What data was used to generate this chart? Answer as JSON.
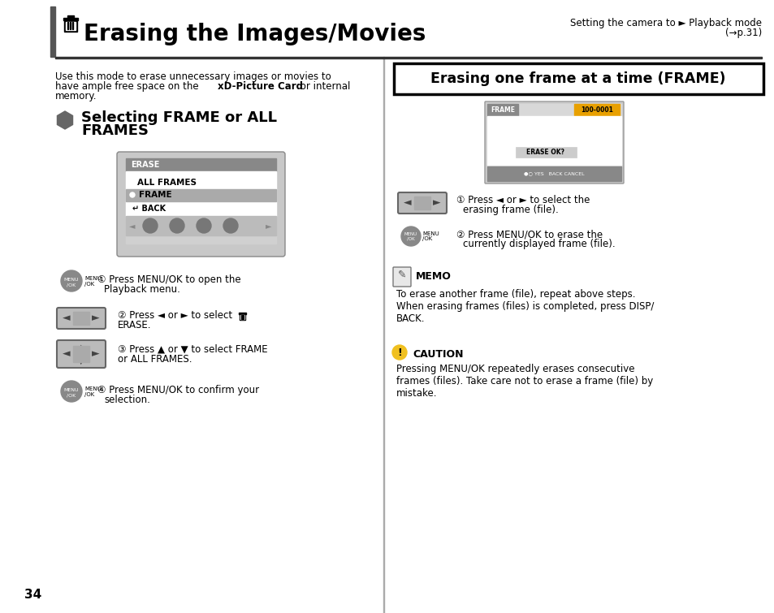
{
  "page_bg": "#ffffff",
  "page_number": "34",
  "title_text": "Erasing the Images/Movies",
  "title_fontsize": 20,
  "top_right_line1": "Setting the camera to ► Playback mode",
  "top_right_line2": "(→p.31)",
  "intro_text": "Use this mode to erase unnecessary images or movies to\nhave ample free space on the xD-Picture Card or internal\nmemory.",
  "section_title_line1": "Selecting FRAME or ALL",
  "section_title_line2": "FRAMES",
  "right_section_title": "Erasing one frame at a time (FRAME)",
  "step1_text": "Press MENU/OK to open the\nPlayback menu.",
  "step2_text": "Press ◄ or ► to select  \nERASE.",
  "step3_text": "Press ▲ or ▼ to select FRAME\nor ALL FRAMES.",
  "step4_text": "Press MENU/OK to confirm your\nselection.",
  "right_step1_text": "Press ◄ or ► to select the\nerasing frame (file).",
  "right_step2_text": "Press MENU/OK to erase the\ncurrently displayed frame (file).",
  "memo_title": "MEMO",
  "memo_text": "To erase another frame (file), repeat above steps.\nWhen erasing frames (files) is completed, press DISP/\nBACK.",
  "caution_title": "CAUTION",
  "caution_text": "Pressing MENU/OK repeatedly erases consecutive\nframes (files). Take care not to erase a frame (file) by\nmistake."
}
